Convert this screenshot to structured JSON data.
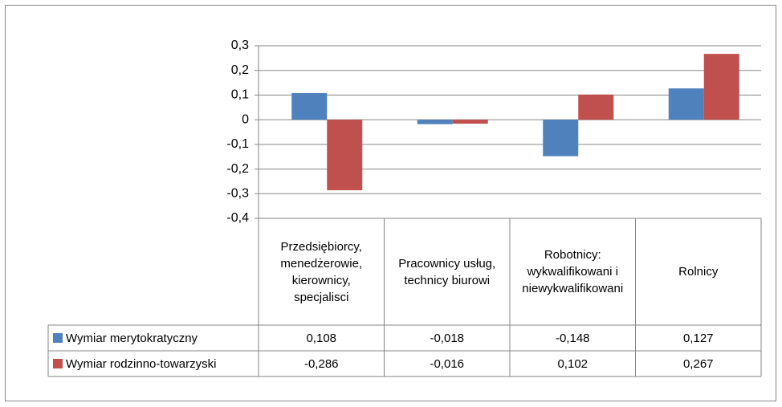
{
  "chart_data": {
    "type": "bar",
    "categories": [
      "Przedsiębiorcy, menedżerowie, kierownicy, specjalisci",
      "Pracownicy usług, technicy biurowi",
      "Robotnicy: wykwalifikowani i niewykwalifikowani",
      "Rolnicy"
    ],
    "series": [
      {
        "name": "Wymiar merytokratyczny",
        "color": "#4f81bd",
        "values": [
          0.108,
          -0.018,
          -0.148,
          0.127
        ],
        "value_labels": [
          "0,108",
          "-0,018",
          "-0,148",
          "0,127"
        ]
      },
      {
        "name": "Wymiar rodzinno-towarzyski",
        "color": "#c0504d",
        "values": [
          -0.286,
          -0.016,
          0.102,
          0.267
        ],
        "value_labels": [
          "-0,286",
          "-0,016",
          "0,102",
          "0,267"
        ]
      }
    ],
    "ylim": [
      -0.4,
      0.3
    ],
    "yticks": [
      {
        "value": -0.4,
        "label": "-0,4"
      },
      {
        "value": -0.3,
        "label": "-0,3"
      },
      {
        "value": -0.2,
        "label": "-0,2"
      },
      {
        "value": -0.1,
        "label": "-0,1"
      },
      0,
      {
        "value": 0.1,
        "label": "0,1"
      },
      {
        "value": 0.2,
        "label": "0,2"
      },
      {
        "value": 0.3,
        "label": "0,3"
      }
    ],
    "grid": true
  }
}
